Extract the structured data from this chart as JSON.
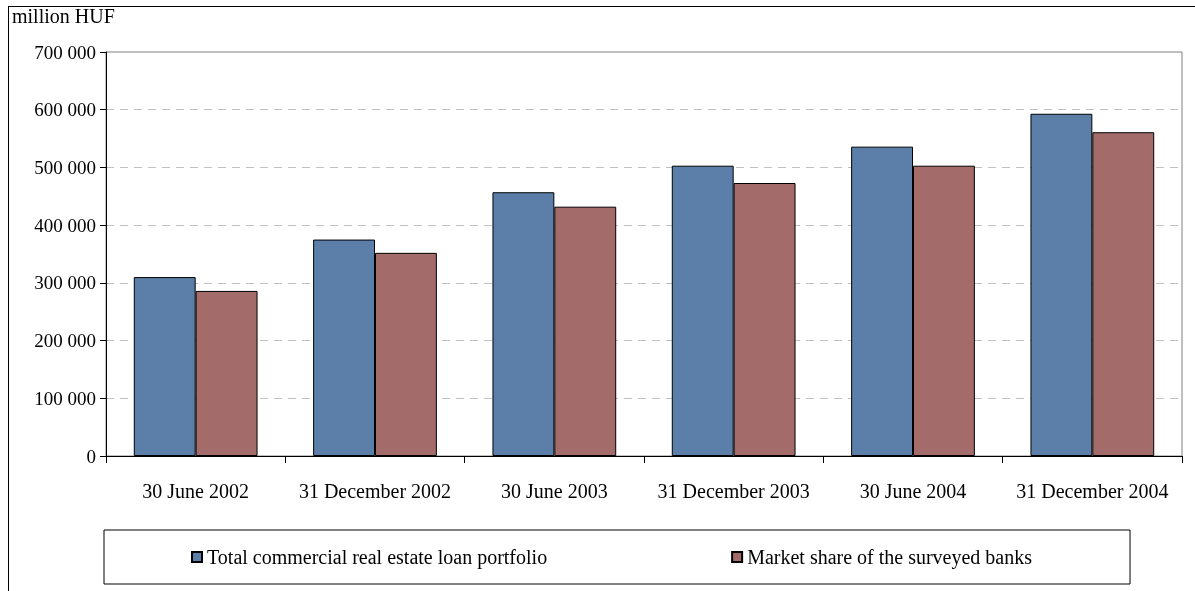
{
  "chart_data": {
    "type": "bar",
    "ylabel": "million HUF",
    "categories": [
      "30 June 2002",
      "31 December 2002",
      "30 June 2003",
      "31 December 2003",
      "30 June 2004",
      "31 December 2004"
    ],
    "series": [
      {
        "name": "Total commercial real estate loan portfolio",
        "color": "#5b7fa8",
        "values": [
          310000,
          375000,
          457000,
          503000,
          536000,
          593000
        ]
      },
      {
        "name": "Market share of the surveyed banks",
        "color": "#a46b6b",
        "values": [
          286000,
          352000,
          432000,
          473000,
          503000,
          561000
        ]
      }
    ],
    "ylim": [
      0,
      700000
    ],
    "yticks": [
      0,
      {
        "value": 100000,
        "label": "100 000"
      },
      {
        "value": 200000,
        "label": "200 000"
      },
      {
        "value": 300000,
        "label": "300 000"
      },
      {
        "value": 400000,
        "label": "400 000"
      },
      {
        "value": 500000,
        "label": "500 000"
      },
      {
        "value": 600000,
        "label": "600 000"
      },
      {
        "value": 700000,
        "label": "700 000"
      }
    ],
    "grid": "y",
    "legend": "bottom"
  }
}
